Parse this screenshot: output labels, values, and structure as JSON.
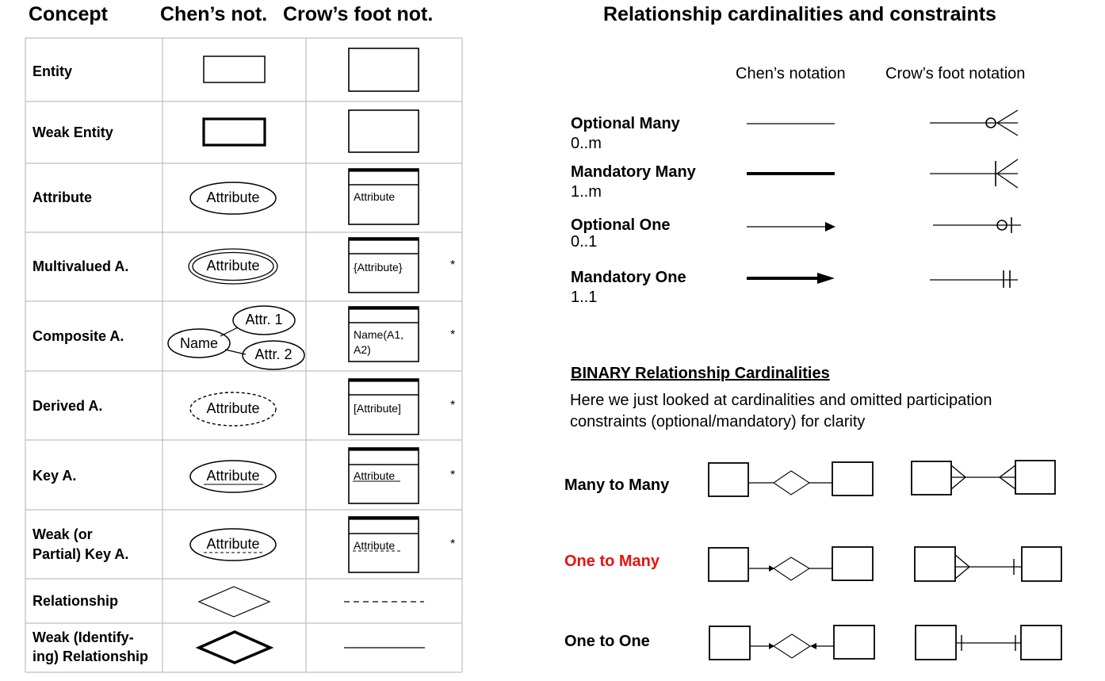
{
  "headers": {
    "concept": "Concept",
    "chen": "Chen’s not.",
    "crow": "Crow’s foot not.",
    "right_title": "Relationship cardinalities and constraints"
  },
  "table": {
    "rows": [
      {
        "label": "Entity",
        "chen_text": "",
        "crow_text": "",
        "star": ""
      },
      {
        "label": "Weak Entity",
        "chen_text": "",
        "crow_text": "",
        "star": ""
      },
      {
        "label": "Attribute",
        "chen_text": "Attribute",
        "crow_text": "Attribute",
        "star": ""
      },
      {
        "label": "Multivalued A.",
        "chen_text": "Attribute",
        "crow_text": "{Attribute}",
        "star": "*"
      },
      {
        "label": "Composite A.",
        "chen_text": "Name",
        "chen_sub1": "Attr. 1",
        "chen_sub2": "Attr. 2",
        "crow_text": "Name(A1,",
        "crow_text2": "A2)",
        "star": "*"
      },
      {
        "label": "Derived A.",
        "chen_text": "Attribute",
        "crow_text": "[Attribute]",
        "star": "*"
      },
      {
        "label": "Key A.",
        "chen_text": "Attribute",
        "crow_text": "Attribute",
        "star": "*"
      },
      {
        "label": "Weak (or",
        "label2": "Partial) Key A.",
        "chen_text": "Attribute",
        "crow_text": "Attribute",
        "star": "*"
      },
      {
        "label": "Relationship",
        "chen_text": "",
        "crow_text": "",
        "star": ""
      },
      {
        "label": "Weak (Identify-",
        "label2": "ing) Relationship",
        "chen_text": "",
        "crow_text": "",
        "star": ""
      }
    ]
  },
  "cardinality": {
    "chen_col": "Chen’s notation",
    "crow_col": "Crow’s foot notation",
    "items": [
      {
        "name": "Optional Many",
        "range": "0..m"
      },
      {
        "name": "Mandatory Many",
        "range": "1..m"
      },
      {
        "name": "Optional One",
        "range": "0..1"
      },
      {
        "name": "Mandatory One",
        "range": "1..1"
      }
    ]
  },
  "binary": {
    "title": "BINARY Relationship Cardinalities",
    "desc1": "Here we just looked at cardinalities and omitted participation",
    "desc2": "constraints (optional/mandatory) for clarity",
    "rows": [
      {
        "name": "Many to Many",
        "color": "#000000"
      },
      {
        "name": "One to Many",
        "color": "#e8120c"
      },
      {
        "name": "One to One",
        "color": "#000000"
      }
    ]
  }
}
